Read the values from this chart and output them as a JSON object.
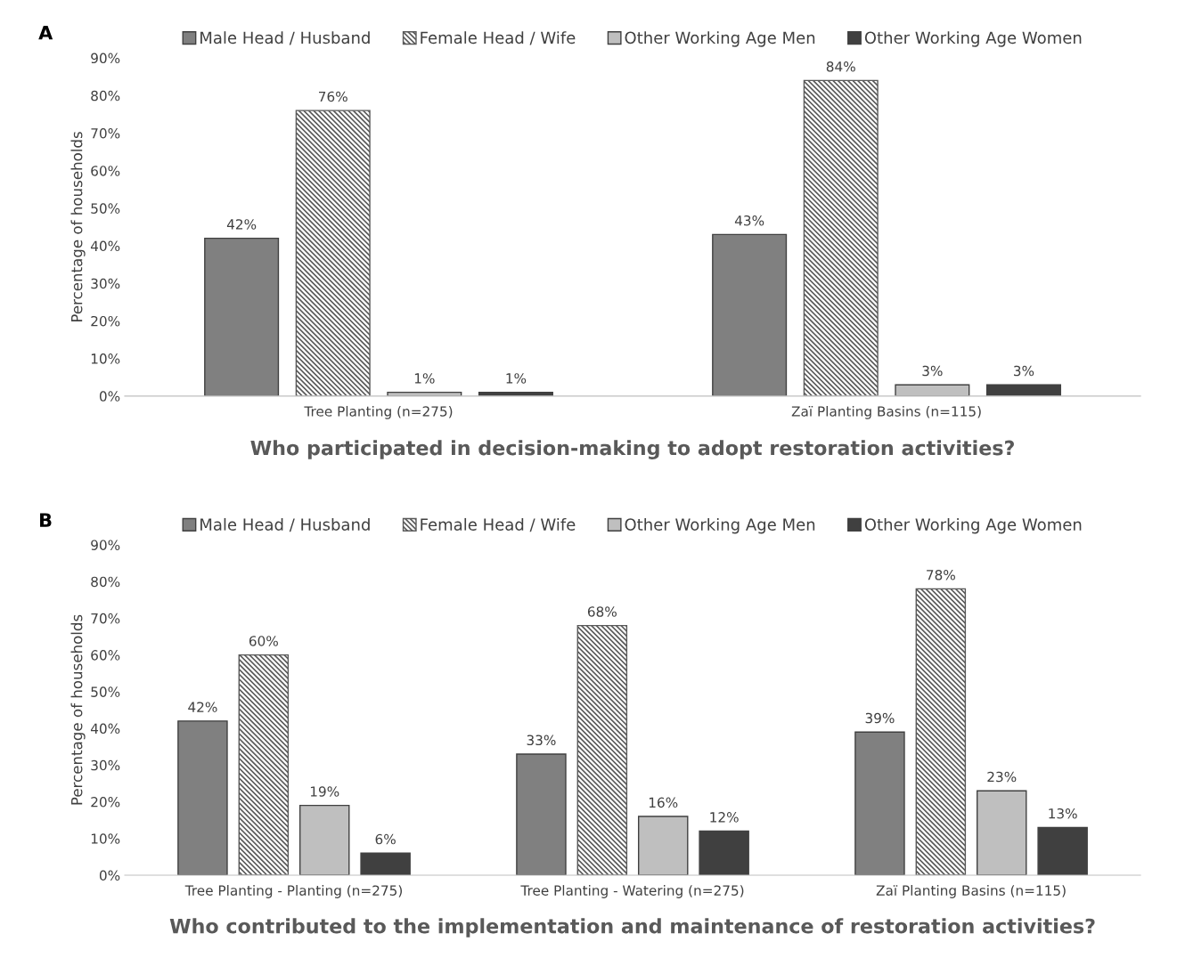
{
  "chart_data": [
    {
      "type": "bar",
      "title": "Who participated in decision-making to adopt restoration activities?",
      "ylabel": "Percentage of households",
      "annotations": [
        "A"
      ],
      "categories": [
        "Tree Planting (n=275)",
        "Zaï Planting Basins (n=115)"
      ],
      "series": [
        {
          "name": "Male Head / Husband",
          "color": "#808080",
          "values": [
            42,
            43
          ],
          "value_labels": [
            "42%",
            "43%"
          ]
        },
        {
          "name": "Female Head / Wife",
          "color": "#595959",
          "values": [
            76,
            84
          ],
          "value_labels": [
            "76%",
            "84%"
          ]
        },
        {
          "name": "Other Working Age Men",
          "color": "#bfbfbf",
          "values": [
            1,
            3
          ],
          "value_labels": [
            "1%",
            "3%"
          ]
        },
        {
          "name": "Other Working Age Women",
          "color": "#404040",
          "values": [
            1,
            3
          ],
          "value_labels": [
            "1%",
            "3%"
          ]
        }
      ],
      "ylim": [
        0,
        90
      ],
      "yticks": [
        {
          "value": 0,
          "label": "0%"
        },
        {
          "value": 10,
          "label": "10%"
        },
        {
          "value": 20,
          "label": "20%"
        },
        {
          "value": 30,
          "label": "30%"
        },
        {
          "value": 40,
          "label": "40%"
        },
        {
          "value": 50,
          "label": "50%"
        },
        {
          "value": 60,
          "label": "60%"
        },
        {
          "value": 70,
          "label": "70%"
        },
        {
          "value": 80,
          "label": "80%"
        },
        {
          "value": 90,
          "label": "90%"
        }
      ],
      "grid": false,
      "legend": "top"
    },
    {
      "type": "bar",
      "title": "Who contributed to the implementation and maintenance of restoration activities?",
      "ylabel": "Percentage of households",
      "annotations": [
        "B"
      ],
      "categories": [
        "Tree Planting - Planting (n=275)",
        "Tree Planting - Watering (n=275)",
        "Zaï Planting Basins (n=115)"
      ],
      "series": [
        {
          "name": "Male Head / Husband",
          "color": "#808080",
          "values": [
            42,
            33,
            39
          ],
          "value_labels": [
            "42%",
            "33%",
            "39%"
          ]
        },
        {
          "name": "Female Head / Wife",
          "color": "#595959",
          "values": [
            60,
            68,
            78
          ],
          "value_labels": [
            "60%",
            "68%",
            "78%"
          ]
        },
        {
          "name": "Other Working Age Men",
          "color": "#bfbfbf",
          "values": [
            19,
            16,
            23
          ],
          "value_labels": [
            "19%",
            "16%",
            "23%"
          ]
        },
        {
          "name": "Other Working Age Women",
          "color": "#404040",
          "values": [
            6,
            12,
            13
          ],
          "value_labels": [
            "6%",
            "12%",
            "13%"
          ]
        }
      ],
      "ylim": [
        0,
        90
      ],
      "yticks": [
        {
          "value": 0,
          "label": "0%"
        },
        {
          "value": 10,
          "label": "10%"
        },
        {
          "value": 20,
          "label": "20%"
        },
        {
          "value": 30,
          "label": "30%"
        },
        {
          "value": 40,
          "label": "40%"
        },
        {
          "value": 50,
          "label": "50%"
        },
        {
          "value": 60,
          "label": "60%"
        },
        {
          "value": 70,
          "label": "70%"
        },
        {
          "value": 80,
          "label": "80%"
        },
        {
          "value": 90,
          "label": "90%"
        }
      ],
      "grid": false,
      "legend": "top"
    }
  ]
}
